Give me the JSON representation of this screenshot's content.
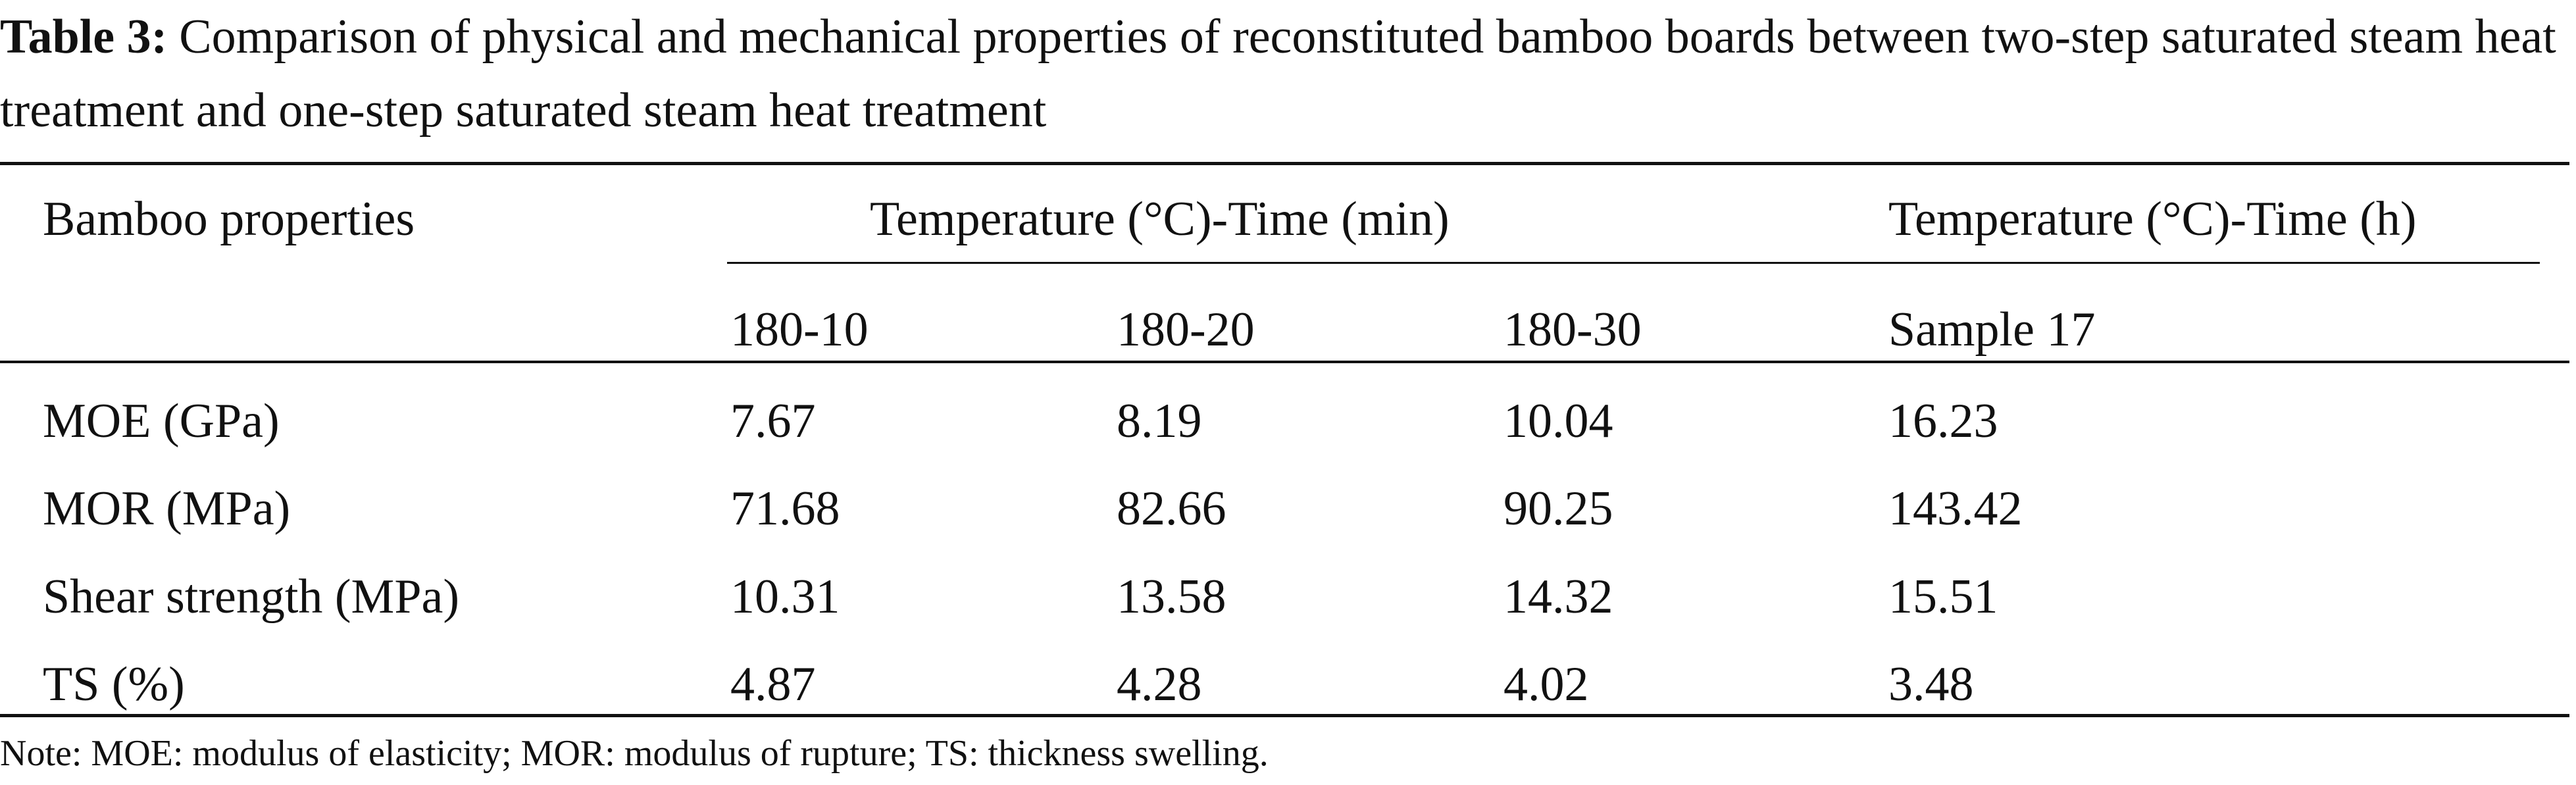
{
  "caption": {
    "label": "Table 3:",
    "text": "Comparison of physical and mechanical properties of reconstituted bamboo boards between two-step saturated steam heat treatment and one-step saturated steam heat treatment"
  },
  "header": {
    "row_label": "Bamboo properties",
    "group1": "Temperature (°C)-Time (min)",
    "group2": "Temperature (°C)-Time (h)",
    "columns": [
      "180-10",
      "180-20",
      "180-30",
      "Sample 17"
    ]
  },
  "rows": [
    {
      "label": "MOE (GPa)",
      "values": [
        "7.67",
        "8.19",
        "10.04",
        "16.23"
      ]
    },
    {
      "label": "MOR (MPa)",
      "values": [
        "71.68",
        "82.66",
        "90.25",
        "143.42"
      ]
    },
    {
      "label": "Shear strength (MPa)",
      "values": [
        "10.31",
        "13.58",
        "14.32",
        "15.51"
      ]
    },
    {
      "label": "TS (%)",
      "values": [
        "4.87",
        "4.28",
        "4.02",
        "3.48"
      ]
    }
  ],
  "note": "Note: MOE: modulus of elasticity; MOR: modulus of rupture; TS: thickness swelling."
}
